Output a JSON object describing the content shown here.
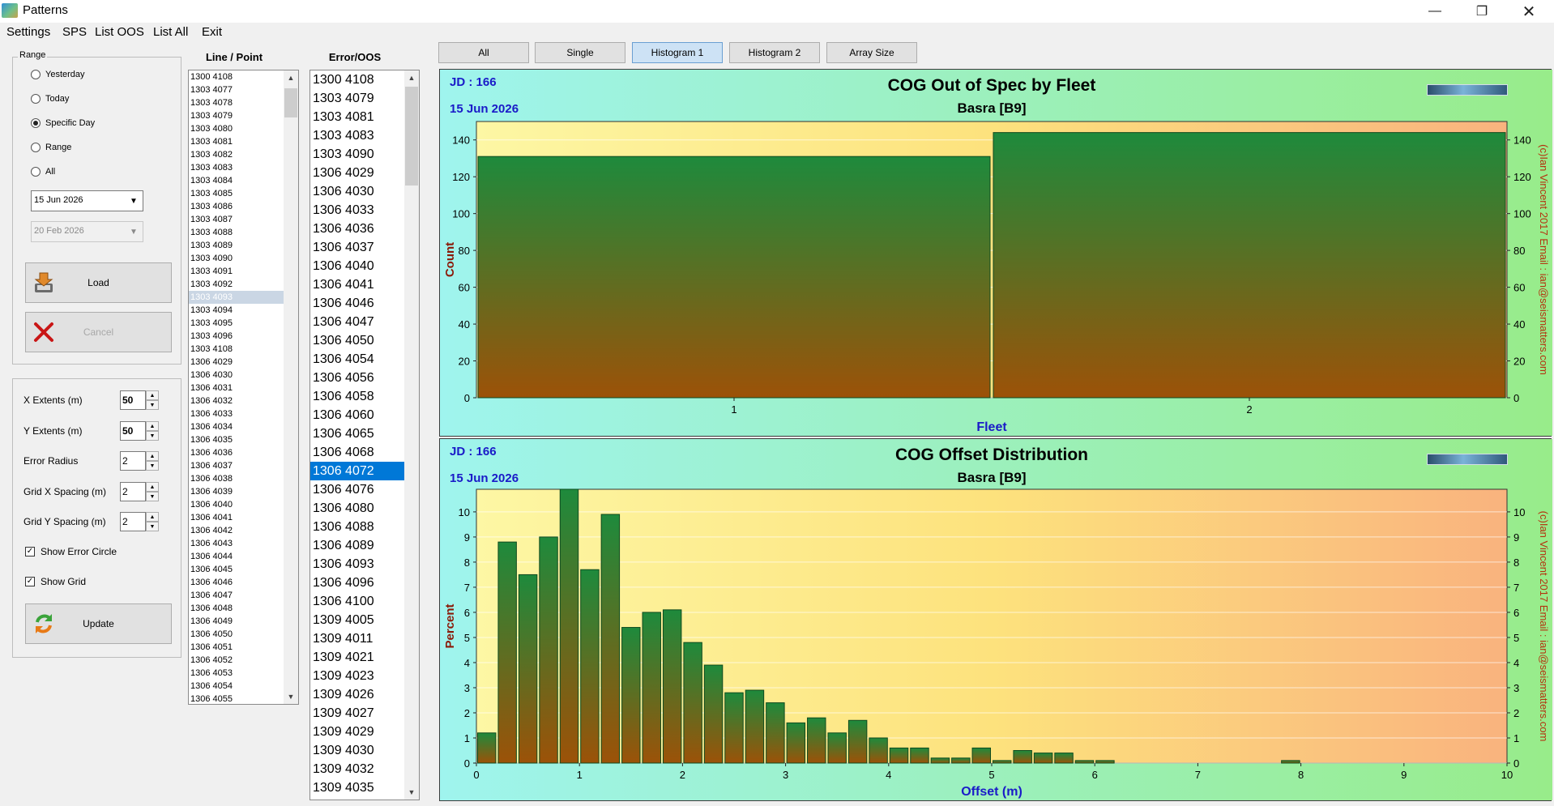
{
  "window": {
    "title": "Patterns"
  },
  "menu": [
    "Settings",
    "SPS",
    "List OOS",
    "List All",
    "Exit"
  ],
  "range": {
    "label": "Range",
    "options": [
      "Yesterday",
      "Today",
      "Specific Day",
      "Range",
      "All"
    ],
    "selected": "Specific Day",
    "date1": "15 Jun 2026",
    "date2": "20 Feb 2026",
    "load_label": "Load",
    "cancel_label": "Cancel"
  },
  "settings": {
    "rows": [
      {
        "label": "X Extents (m)",
        "value": "50"
      },
      {
        "label": "Y Extents (m)",
        "value": "50"
      },
      {
        "label": "Error Radius",
        "value": "2"
      },
      {
        "label": "Grid X Spacing (m)",
        "value": "2"
      },
      {
        "label": "Grid Y Spacing (m)",
        "value": "2"
      }
    ],
    "show_error_circle": {
      "label": "Show Error Circle",
      "checked": true
    },
    "show_grid": {
      "label": "Show Grid",
      "checked": true
    },
    "update_label": "Update"
  },
  "line_point": {
    "header": "Line / Point",
    "selected": "1303 4093",
    "items": [
      "1300 4108",
      "1303 4077",
      "1303 4078",
      "1303 4079",
      "1303 4080",
      "1303 4081",
      "1303 4082",
      "1303 4083",
      "1303 4084",
      "1303 4085",
      "1303 4086",
      "1303 4087",
      "1303 4088",
      "1303 4089",
      "1303 4090",
      "1303 4091",
      "1303 4092",
      "1303 4093",
      "1303 4094",
      "1303 4095",
      "1303 4096",
      "1303 4108",
      "1306 4029",
      "1306 4030",
      "1306 4031",
      "1306 4032",
      "1306 4033",
      "1306 4034",
      "1306 4035",
      "1306 4036",
      "1306 4037",
      "1306 4038",
      "1306 4039",
      "1306 4040",
      "1306 4041",
      "1306 4042",
      "1306 4043",
      "1306 4044",
      "1306 4045",
      "1306 4046",
      "1306 4047",
      "1306 4048",
      "1306 4049",
      "1306 4050",
      "1306 4051",
      "1306 4052",
      "1306 4053",
      "1306 4054",
      "1306 4055"
    ]
  },
  "error_oos": {
    "header": "Error/OOS",
    "selected": "1306 4072",
    "items": [
      "1300 4108",
      "1303 4079",
      "1303 4081",
      "1303 4083",
      "1303 4090",
      "1306 4029",
      "1306 4030",
      "1306 4033",
      "1306 4036",
      "1306 4037",
      "1306 4040",
      "1306 4041",
      "1306 4046",
      "1306 4047",
      "1306 4050",
      "1306 4054",
      "1306 4056",
      "1306 4058",
      "1306 4060",
      "1306 4065",
      "1306 4068",
      "1306 4072",
      "1306 4076",
      "1306 4080",
      "1306 4088",
      "1306 4089",
      "1306 4093",
      "1306 4096",
      "1306 4100",
      "1309 4005",
      "1309 4011",
      "1309 4021",
      "1309 4023",
      "1309 4026",
      "1309 4027",
      "1309 4029",
      "1309 4030",
      "1309 4032",
      "1309 4035"
    ]
  },
  "tabs": {
    "items": [
      "All",
      "Single",
      "Histogram 1",
      "Histogram 2",
      "Array Size"
    ],
    "active": "Histogram 1"
  },
  "colors": {
    "bar_top": "#1e8a3c",
    "bar_bottom": "#9c5208",
    "frame_left": "#9ff4ee",
    "frame_right": "#98ec8a",
    "accent_title": "#1a1ac8",
    "copyright": "#b4320f"
  },
  "chart_data": [
    {
      "type": "bar",
      "jd": "JD : 166",
      "date": "15 Jun 2026",
      "title": "COG Out of Spec by Fleet",
      "subtitle": "Basra  [B9]",
      "xlabel": "Fleet",
      "ylabel": "Count",
      "categories": [
        "1",
        "2"
      ],
      "values": [
        131,
        144
      ],
      "ylim": [
        0,
        150
      ],
      "yticks": [
        0,
        20,
        40,
        60,
        80,
        100,
        120,
        140
      ],
      "grid": true,
      "copyright": "(c)Ian Vincent 2017  Email : ian@seismatters.com"
    },
    {
      "type": "bar",
      "jd": "JD : 166",
      "date": "15 Jun 2026",
      "title": "COG Offset Distribution",
      "subtitle": "Basra  [B9]",
      "xlabel": "Offset (m)",
      "ylabel": "Percent",
      "bin_width": 0.2,
      "bin_starts": [
        0,
        0.2,
        0.4,
        0.6,
        0.8,
        1.0,
        1.2,
        1.4,
        1.6,
        1.8,
        2.0,
        2.2,
        2.4,
        2.6,
        2.8,
        3.0,
        3.2,
        3.4,
        3.6,
        3.8,
        4.0,
        4.2,
        4.4,
        4.6,
        4.8,
        5.0,
        5.2,
        5.4,
        5.6,
        5.8,
        6.0,
        6.2,
        6.4,
        6.6,
        6.8,
        7.0,
        7.2,
        7.4,
        7.6,
        7.8,
        8.0
      ],
      "values": [
        1.2,
        8.8,
        7.5,
        9.0,
        10.9,
        7.7,
        9.9,
        5.4,
        6.0,
        6.1,
        4.8,
        3.9,
        2.8,
        2.9,
        2.4,
        1.6,
        1.8,
        1.2,
        1.7,
        1.0,
        0.6,
        0.6,
        0.2,
        0.2,
        0.6,
        0.1,
        0.5,
        0.4,
        0.4,
        0.1,
        0.1,
        0,
        0,
        0,
        0,
        0,
        0,
        0,
        0,
        0.1,
        0
      ],
      "xlim": [
        0,
        10
      ],
      "xticks": [
        0,
        1,
        2,
        3,
        4,
        5,
        6,
        7,
        8,
        9,
        10
      ],
      "ylim": [
        0,
        10.9
      ],
      "yticks": [
        0,
        1,
        2,
        3,
        4,
        5,
        6,
        7,
        8,
        9,
        10
      ],
      "grid": true,
      "copyright": "(c)Ian Vincent 2017  Email : ian@seismatters.com"
    }
  ]
}
